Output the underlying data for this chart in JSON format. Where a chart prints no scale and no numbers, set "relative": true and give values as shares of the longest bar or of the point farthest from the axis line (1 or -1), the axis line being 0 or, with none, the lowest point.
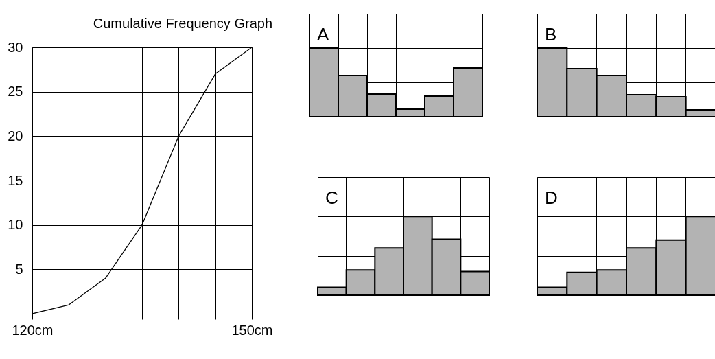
{
  "chart_data": [
    {
      "type": "line",
      "title": "Cumulative Frequency Graph",
      "x": [
        120,
        125,
        130,
        135,
        140,
        145,
        150
      ],
      "values": [
        0,
        1,
        4,
        10,
        20,
        27,
        30
      ],
      "color": "#000000",
      "xlim": [
        120,
        150
      ],
      "ylim": [
        0,
        30
      ],
      "xticks": [
        {
          "value": 120,
          "label": "120cm"
        },
        {
          "value": 125,
          "label": null
        },
        {
          "value": 130,
          "label": null
        },
        {
          "value": 135,
          "label": null
        },
        {
          "value": 140,
          "label": null
        },
        {
          "value": 145,
          "label": null
        },
        {
          "value": 150,
          "label": "150cm"
        }
      ],
      "yticks": [
        5,
        10,
        15,
        20,
        25,
        30
      ],
      "grid": true
    },
    {
      "type": "bar",
      "title": "A",
      "categories": [
        null,
        null,
        null,
        null,
        null,
        null
      ],
      "values": [
        1,
        0.6,
        0.33,
        0.11,
        0.3,
        0.71
      ],
      "color": "#b3b3b3",
      "relative": true,
      "grid": true
    },
    {
      "type": "bar",
      "title": "B",
      "categories": [
        null,
        null,
        null,
        null,
        null,
        null
      ],
      "values": [
        1,
        0.7,
        0.6,
        0.32,
        0.29,
        0.1
      ],
      "color": "#b3b3b3",
      "relative": true,
      "grid": true
    },
    {
      "type": "bar",
      "title": "C",
      "categories": [
        null,
        null,
        null,
        null,
        null,
        null
      ],
      "values": [
        0.1,
        0.32,
        0.6,
        1,
        0.71,
        0.3
      ],
      "color": "#b3b3b3",
      "relative": true,
      "grid": true
    },
    {
      "type": "bar",
      "title": "D",
      "categories": [
        null,
        null,
        null,
        null,
        null,
        null
      ],
      "values": [
        0.1,
        0.29,
        0.32,
        0.6,
        0.7,
        1
      ],
      "color": "#b3b3b3",
      "relative": true,
      "grid": true
    }
  ]
}
